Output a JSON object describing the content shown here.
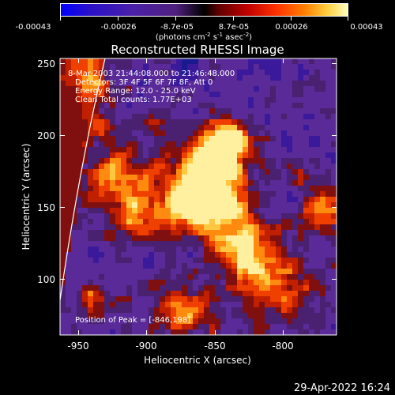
{
  "colorbar": {
    "tick_labels": [
      "-0.00043",
      "-0.00026",
      "-8.7e-05",
      "8.7e-05",
      "0.00026",
      "0.00043"
    ],
    "unit_line1": "(photons cm",
    "unit_exp1": "-2",
    "unit_mid": " s",
    "unit_exp2": "-1",
    "unit_mid2": " asec",
    "unit_exp3": "-2",
    "unit_end": ")",
    "colors": [
      "#0000ff",
      "#3a1aa0",
      "#5a2a90",
      "#000000",
      "#d01000",
      "#ff8000",
      "#ffffa0"
    ]
  },
  "plot": {
    "title": "Reconstructed RHESSI Image",
    "info_lines": [
      "8-Mar-2003 21:44:08.000 to 21:46:48.000",
      "Detectors: 3F 4F 5F 6F 7F 8F, Att 0",
      "Energy Range: 12.0 - 25.0 keV",
      "Clean     Total counts: 1.77E+03"
    ],
    "peak_label": "Position of Peak = [-846,198]",
    "xlabel": "Heliocentric X (arcsec)",
    "ylabel": "Heliocentric Y (arcsec)",
    "xticks": [
      "-950",
      "-900",
      "-850",
      "-800"
    ],
    "yticks": [
      "100",
      "150",
      "200",
      "250"
    ],
    "xlim": [
      -965,
      -776
    ],
    "ylim": [
      60,
      255
    ]
  },
  "footer": {
    "timestamp": "29-Apr-2022 16:24"
  }
}
